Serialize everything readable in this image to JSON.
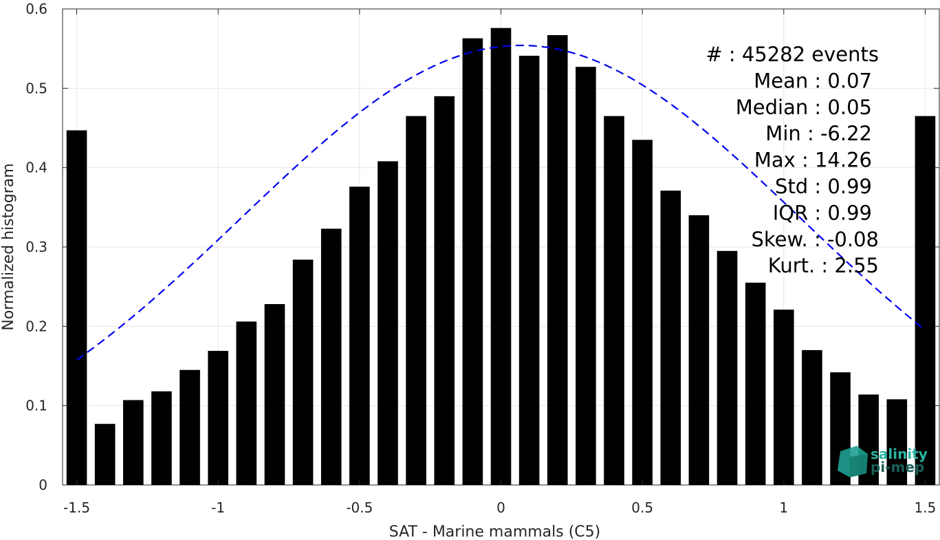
{
  "chart_data": {
    "type": "bar",
    "xlabel": "SAT - Marine mammals (C5)",
    "ylabel": "Normalized histogram",
    "xlim": [
      -1.55,
      1.55
    ],
    "ylim": [
      0,
      0.6
    ],
    "grid": true,
    "x_ticks": [
      -1.5,
      -1,
      -0.5,
      0,
      0.5,
      1,
      1.5
    ],
    "x_tick_labels": [
      "-1.5",
      "-1",
      "-0.5",
      "0",
      "0.5",
      "1",
      "1.5"
    ],
    "y_ticks": [
      0,
      0.1,
      0.2,
      0.3,
      0.4,
      0.5,
      0.6
    ],
    "y_tick_labels": [
      "0",
      "0.1",
      "0.2",
      "0.3",
      "0.4",
      "0.5",
      "0.6"
    ],
    "bar_color": "#000000",
    "x": [
      -1.5,
      -1.4,
      -1.3,
      -1.2,
      -1.1,
      -1.0,
      -0.9,
      -0.8,
      -0.7,
      -0.6,
      -0.5,
      -0.4,
      -0.3,
      -0.2,
      -0.1,
      0.0,
      0.1,
      0.2,
      0.3,
      0.4,
      0.5,
      0.6,
      0.7,
      0.8,
      0.9,
      1.0,
      1.1,
      1.2,
      1.3,
      1.4,
      1.5
    ],
    "values": [
      0.447,
      0.077,
      0.107,
      0.118,
      0.145,
      0.169,
      0.206,
      0.228,
      0.284,
      0.323,
      0.376,
      0.408,
      0.465,
      0.49,
      0.563,
      0.576,
      0.541,
      0.567,
      0.527,
      0.465,
      0.435,
      0.371,
      0.34,
      0.295,
      0.255,
      0.221,
      0.17,
      0.142,
      0.114,
      0.108,
      0.465
    ],
    "fit_curve": {
      "style": "dashed",
      "color": "#0000ee",
      "mean": 0.07,
      "std": 0.99,
      "normalization": 1.375,
      "x_range": [
        -1.5,
        1.5
      ]
    },
    "stats_lines": [
      "#  : 45282 events",
      "Mean : 0.07",
      "Median : 0.05",
      "Min : -6.22",
      "Max : 14.26",
      "Std : 0.99",
      "IQR : 0.99",
      "Skew. : -0.08",
      "Kurt. : 2.55"
    ]
  },
  "logo": {
    "line1": "salinity",
    "line2": "pi-mep",
    "color1": "#2bb5a3",
    "color2": "#1b5e58"
  }
}
